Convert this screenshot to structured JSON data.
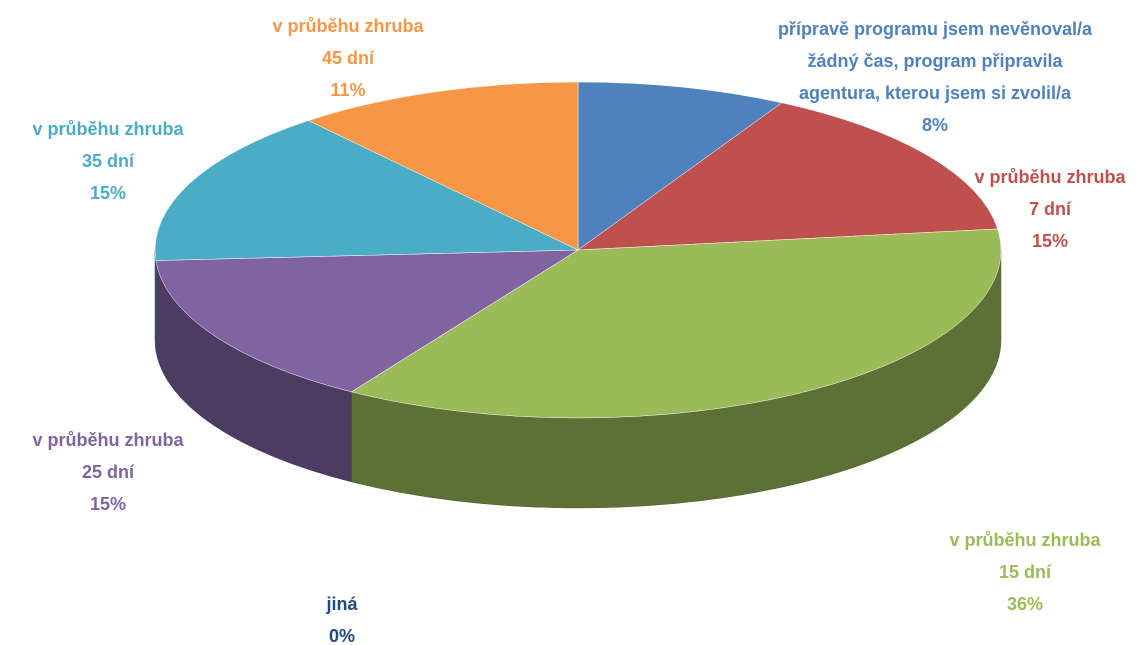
{
  "chart_data": {
    "type": "pie",
    "categories": [
      [
        "přípravě programu jsem nevěnoval/a",
        "žádný čas, program připravila",
        "agentura, kterou jsem si zvolil/a"
      ],
      [
        "v průběhu zhruba",
        "7 dní"
      ],
      [
        "v průběhu zhruba",
        "15 dní"
      ],
      [
        "jiná"
      ],
      [
        "v průběhu zhruba",
        "25 dní"
      ],
      [
        "v průběhu zhruba",
        "35 dní"
      ],
      [
        "v průběhu zhruba",
        "45 dní"
      ]
    ],
    "values": [
      8,
      15,
      36,
      0,
      15,
      15,
      11
    ],
    "value_labels": [
      "8%",
      "15%",
      "36%",
      "0%",
      "15%",
      "15%",
      "11%"
    ],
    "colors": [
      "#4f81bd",
      "#c0504d",
      "#9bbb59",
      "#1f497d",
      "#8064a2",
      "#4bacc6",
      "#f79646"
    ]
  }
}
